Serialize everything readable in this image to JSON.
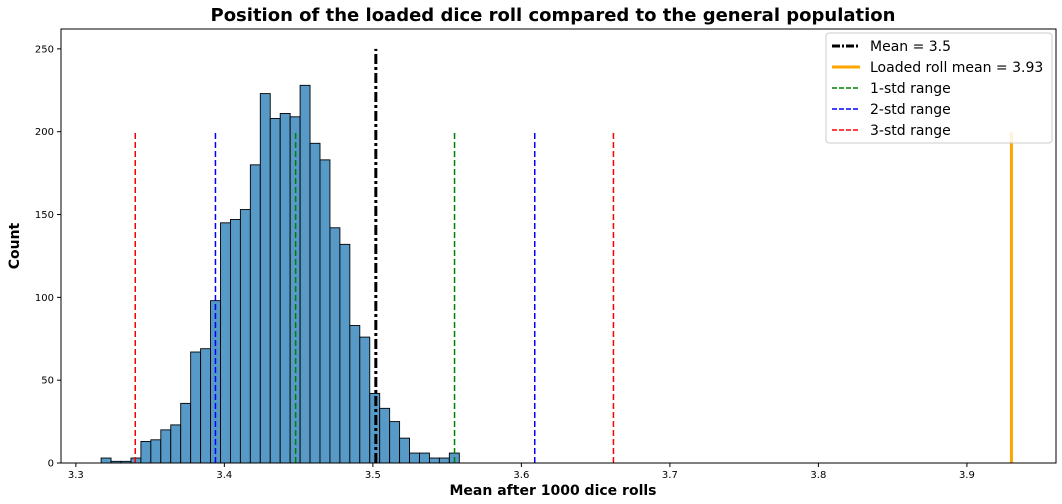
{
  "chart_data": {
    "type": "bar",
    "title": "Position of the loaded dice roll compared to the general population",
    "xlabel": "Mean after 1000 dice rolls",
    "ylabel": "Count",
    "xlim": [
      3.29,
      3.96
    ],
    "ylim": [
      0,
      262
    ],
    "xticks": [
      3.3,
      3.4,
      3.5,
      3.6,
      3.7,
      3.8,
      3.9
    ],
    "xtick_labels": [
      "3.3",
      "3.4",
      "3.5",
      "3.6",
      "3.7",
      "3.8",
      "3.9"
    ],
    "yticks": [
      0,
      50,
      100,
      150,
      200,
      250
    ],
    "ytick_labels": [
      "0",
      "50",
      "100",
      "150",
      "200",
      "250"
    ],
    "grid": false,
    "legend_position": "top-right",
    "histogram": {
      "bin_start": 3.317,
      "bin_width": 0.0067,
      "counts": [
        3,
        1,
        1,
        3,
        13,
        14,
        20,
        23,
        36,
        67,
        69,
        98,
        145,
        147,
        153,
        180,
        223,
        208,
        211,
        209,
        228,
        193,
        183,
        142,
        132,
        83,
        76,
        42,
        33,
        25,
        15,
        6,
        6,
        3,
        3,
        6
      ],
      "color": "#5799c7",
      "edge_color": "#000000"
    },
    "lines": [
      {
        "name": "Mean = 3.5",
        "x": [
          3.502
        ],
        "y_range": [
          0,
          250
        ],
        "color": "#000000",
        "style": "dashdot"
      },
      {
        "name": "Loaded roll mean = 3.93",
        "x": [
          3.93
        ],
        "y_range": [
          0,
          200
        ],
        "color": "#ffa500",
        "style": "solid"
      },
      {
        "name": "1-std range",
        "x": [
          3.448,
          3.555
        ],
        "y_range": [
          0,
          200
        ],
        "color": "#008000",
        "style": "dashed"
      },
      {
        "name": "2-std range",
        "x": [
          3.394,
          3.609
        ],
        "y_range": [
          0,
          200
        ],
        "color": "#0000ff",
        "style": "dashed"
      },
      {
        "name": "3-std range",
        "x": [
          3.34,
          3.662
        ],
        "y_range": [
          0,
          200
        ],
        "color": "#ff0000",
        "style": "dashed"
      }
    ]
  }
}
